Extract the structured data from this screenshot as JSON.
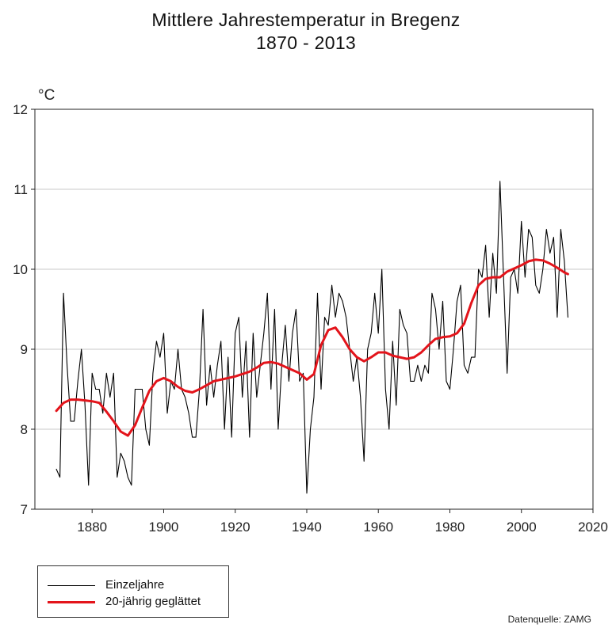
{
  "chart_data": {
    "type": "line",
    "title": "Mittlere Jahrestemperatur in Bregenz",
    "subtitle": "1870 - 2013",
    "ylabel": "°C",
    "xlim": [
      1864,
      2020
    ],
    "ylim": [
      7,
      12
    ],
    "xticks": [
      1880,
      1900,
      1920,
      1940,
      1960,
      1980,
      2000,
      2020
    ],
    "yticks": [
      7,
      8,
      9,
      10,
      11,
      12
    ],
    "grid": "horizontal",
    "legend_position": "bottom-left",
    "series": [
      {
        "name": "Einzeljahre",
        "color": "#000000",
        "x": [
          1870,
          1871,
          1872,
          1873,
          1874,
          1875,
          1876,
          1877,
          1878,
          1879,
          1880,
          1881,
          1882,
          1883,
          1884,
          1885,
          1886,
          1887,
          1888,
          1889,
          1890,
          1891,
          1892,
          1893,
          1894,
          1895,
          1896,
          1897,
          1898,
          1899,
          1900,
          1901,
          1902,
          1903,
          1904,
          1905,
          1906,
          1907,
          1908,
          1909,
          1910,
          1911,
          1912,
          1913,
          1914,
          1915,
          1916,
          1917,
          1918,
          1919,
          1920,
          1921,
          1922,
          1923,
          1924,
          1925,
          1926,
          1927,
          1928,
          1929,
          1930,
          1931,
          1932,
          1933,
          1934,
          1935,
          1936,
          1937,
          1938,
          1939,
          1940,
          1941,
          1942,
          1943,
          1944,
          1945,
          1946,
          1947,
          1948,
          1949,
          1950,
          1951,
          1952,
          1953,
          1954,
          1955,
          1956,
          1957,
          1958,
          1959,
          1960,
          1961,
          1962,
          1963,
          1964,
          1965,
          1966,
          1967,
          1968,
          1969,
          1970,
          1971,
          1972,
          1973,
          1974,
          1975,
          1976,
          1977,
          1978,
          1979,
          1980,
          1981,
          1982,
          1983,
          1984,
          1985,
          1986,
          1987,
          1988,
          1989,
          1990,
          1991,
          1992,
          1993,
          1994,
          1995,
          1996,
          1997,
          1998,
          1999,
          2000,
          2001,
          2002,
          2003,
          2004,
          2005,
          2006,
          2007,
          2008,
          2009,
          2010,
          2011,
          2012,
          2013
        ],
        "values": [
          7.5,
          7.4,
          9.7,
          8.8,
          8.1,
          8.1,
          8.6,
          9.0,
          8.3,
          7.3,
          8.7,
          8.5,
          8.5,
          8.2,
          8.7,
          8.4,
          8.7,
          7.4,
          7.7,
          7.6,
          7.4,
          7.3,
          8.5,
          8.5,
          8.5,
          8.0,
          7.8,
          8.7,
          9.1,
          8.9,
          9.2,
          8.2,
          8.6,
          8.5,
          9.0,
          8.5,
          8.4,
          8.2,
          7.9,
          7.9,
          8.5,
          9.5,
          8.3,
          8.8,
          8.4,
          8.8,
          9.1,
          8.0,
          8.9,
          7.9,
          9.2,
          9.4,
          8.4,
          9.1,
          7.9,
          9.2,
          8.4,
          8.8,
          9.2,
          9.7,
          8.5,
          9.5,
          8.0,
          8.8,
          9.3,
          8.6,
          9.2,
          9.5,
          8.6,
          8.7,
          7.2,
          8.0,
          8.4,
          9.7,
          8.5,
          9.4,
          9.3,
          9.8,
          9.4,
          9.7,
          9.6,
          9.4,
          9.0,
          8.6,
          8.9,
          8.4,
          7.6,
          9.0,
          9.2,
          9.7,
          9.2,
          10.0,
          8.5,
          8.0,
          9.1,
          8.3,
          9.5,
          9.3,
          9.2,
          8.6,
          8.6,
          8.8,
          8.6,
          8.8,
          8.7,
          9.7,
          9.5,
          9.0,
          9.6,
          8.6,
          8.5,
          9.0,
          9.6,
          9.8,
          8.8,
          8.7,
          8.9,
          8.9,
          10.0,
          9.9,
          10.3,
          9.4,
          10.2,
          9.7,
          11.1,
          9.9,
          8.7,
          9.9,
          10.0,
          9.7,
          10.6,
          9.9,
          10.5,
          10.4,
          9.8,
          9.7,
          10.0,
          10.5,
          10.2,
          10.4,
          9.4,
          10.5,
          10.1,
          9.4
        ]
      },
      {
        "name": "20-jährig geglättet",
        "color": "#e3141b",
        "x": [
          1870,
          1872,
          1874,
          1876,
          1878,
          1880,
          1882,
          1884,
          1886,
          1888,
          1890,
          1892,
          1894,
          1896,
          1898,
          1900,
          1902,
          1904,
          1906,
          1908,
          1910,
          1912,
          1914,
          1916,
          1918,
          1920,
          1922,
          1924,
          1926,
          1928,
          1930,
          1932,
          1934,
          1936,
          1938,
          1940,
          1942,
          1944,
          1946,
          1948,
          1950,
          1952,
          1954,
          1956,
          1958,
          1960,
          1962,
          1964,
          1966,
          1968,
          1970,
          1972,
          1974,
          1976,
          1978,
          1980,
          1982,
          1984,
          1986,
          1988,
          1990,
          1992,
          1994,
          1996,
          1998,
          2000,
          2002,
          2004,
          2006,
          2008,
          2010,
          2012,
          2013
        ],
        "values": [
          8.23,
          8.33,
          8.37,
          8.37,
          8.36,
          8.35,
          8.33,
          8.22,
          8.1,
          7.97,
          7.92,
          8.05,
          8.27,
          8.48,
          8.6,
          8.64,
          8.6,
          8.53,
          8.48,
          8.46,
          8.5,
          8.55,
          8.6,
          8.62,
          8.64,
          8.66,
          8.69,
          8.72,
          8.77,
          8.83,
          8.84,
          8.82,
          8.78,
          8.74,
          8.7,
          8.62,
          8.69,
          9.05,
          9.24,
          9.27,
          9.15,
          9.0,
          8.9,
          8.85,
          8.9,
          8.96,
          8.96,
          8.92,
          8.9,
          8.88,
          8.9,
          8.96,
          9.05,
          9.13,
          9.15,
          9.16,
          9.2,
          9.32,
          9.58,
          9.8,
          9.88,
          9.9,
          9.9,
          9.97,
          10.01,
          10.05,
          10.1,
          10.12,
          10.11,
          10.07,
          10.02,
          9.96,
          9.94
        ]
      }
    ],
    "source_label": "Datenquelle: ZAMG"
  }
}
